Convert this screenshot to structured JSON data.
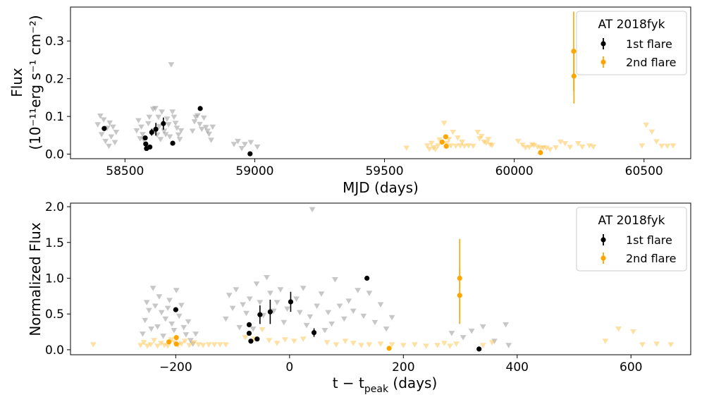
{
  "colors": {
    "black": "#000000",
    "orange": "#FFA500",
    "gray": "#999999",
    "light_orange": "#FFC658"
  },
  "chart_data": [
    {
      "type": "scatter",
      "xlabel": "MJD (days)",
      "ylabel_line1": "Flux",
      "ylabel_line2": "(10⁻¹¹erg s⁻¹ cm⁻²)",
      "xlim": [
        58290,
        60680
      ],
      "ylim": [
        -0.012,
        0.39
      ],
      "xticks": [
        58500,
        59000,
        59500,
        60000,
        60500
      ],
      "yticks": [
        0.0,
        0.1,
        0.2,
        0.3
      ],
      "ytick_labels": [
        "0.0",
        "0.1",
        "0.2",
        "0.3"
      ],
      "legend": {
        "title": "AT 2018fyk",
        "entries": [
          {
            "label": "1st flare",
            "color": "#000000"
          },
          {
            "label": "2nd flare",
            "color": "#FFA500"
          }
        ],
        "placement": "upper-right"
      },
      "series": [
        {
          "name": "1st flare",
          "color": "#000000",
          "points": [
            {
              "x": 58420,
              "y": 0.068,
              "err": 0.004
            },
            {
              "x": 58578,
              "y": 0.043,
              "err": 0.005
            },
            {
              "x": 58580,
              "y": 0.027,
              "err": 0.005
            },
            {
              "x": 58583,
              "y": 0.015,
              "err": 0.004
            },
            {
              "x": 58596,
              "y": 0.019,
              "err": 0.004
            },
            {
              "x": 58603,
              "y": 0.058,
              "err": 0.009
            },
            {
              "x": 58619,
              "y": 0.066,
              "err": 0.017
            },
            {
              "x": 58648,
              "y": 0.081,
              "err": 0.016
            },
            {
              "x": 58684,
              "y": 0.029,
              "err": 0.006
            },
            {
              "x": 58790,
              "y": 0.121,
              "err": 0.003
            },
            {
              "x": 58982,
              "y": 0.001,
              "err": 0.002
            }
          ]
        },
        {
          "name": "2nd flare",
          "color": "#FFA500",
          "points": [
            {
              "x": 59722,
              "y": 0.032,
              "err": 0.004
            },
            {
              "x": 59736,
              "y": 0.046,
              "err": 0.004
            },
            {
              "x": 59738,
              "y": 0.021,
              "err": 0.003
            },
            {
              "x": 60101,
              "y": 0.004,
              "err": 0.002
            },
            {
              "x": 60229,
              "y": 0.273,
              "err": 0.105
            },
            {
              "x": 60230,
              "y": 0.207,
              "err": 0.073
            }
          ]
        }
      ],
      "upper_limits_gray": [
        [
          58395,
          0.078
        ],
        [
          58405,
          0.101
        ],
        [
          58410,
          0.052
        ],
        [
          58418,
          0.091
        ],
        [
          58425,
          0.034
        ],
        [
          58432,
          0.069
        ],
        [
          58438,
          0.021
        ],
        [
          58441,
          0.083
        ],
        [
          58447,
          0.046
        ],
        [
          58454,
          0.072
        ],
        [
          58461,
          0.031
        ],
        [
          58466,
          0.058
        ],
        [
          58545,
          0.062
        ],
        [
          58552,
          0.089
        ],
        [
          58558,
          0.041
        ],
        [
          58563,
          0.072
        ],
        [
          58568,
          0.052
        ],
        [
          58572,
          0.038
        ],
        [
          58590,
          0.081
        ],
        [
          58594,
          0.098
        ],
        [
          58608,
          0.119
        ],
        [
          58611,
          0.061
        ],
        [
          58617,
          0.121
        ],
        [
          58624,
          0.051
        ],
        [
          58629,
          0.098
        ],
        [
          58631,
          0.073
        ],
        [
          58637,
          0.039
        ],
        [
          58642,
          0.112
        ],
        [
          58651,
          0.061
        ],
        [
          58657,
          0.052
        ],
        [
          58662,
          0.093
        ],
        [
          58668,
          0.078
        ],
        [
          58673,
          0.046
        ],
        [
          58678,
          0.237
        ],
        [
          58683,
          0.112
        ],
        [
          58689,
          0.098
        ],
        [
          58695,
          0.082
        ],
        [
          58700,
          0.069
        ],
        [
          58706,
          0.051
        ],
        [
          58711,
          0.039
        ],
        [
          58716,
          0.062
        ],
        [
          58760,
          0.061
        ],
        [
          58768,
          0.086
        ],
        [
          58773,
          0.098
        ],
        [
          58780,
          0.102
        ],
        [
          58788,
          0.079
        ],
        [
          58796,
          0.066
        ],
        [
          58804,
          0.096
        ],
        [
          58812,
          0.071
        ],
        [
          58818,
          0.061
        ],
        [
          58824,
          0.053
        ],
        [
          58832,
          0.037
        ],
        [
          58838,
          0.072
        ],
        [
          58920,
          0.026
        ],
        [
          58935,
          0.034
        ],
        [
          58950,
          0.015
        ],
        [
          58962,
          0.026
        ],
        [
          58985,
          0.031
        ],
        [
          59010,
          0.019
        ]
      ],
      "upper_limits_orange": [
        [
          59585,
          0.016
        ],
        [
          59665,
          0.022
        ],
        [
          59673,
          0.013
        ],
        [
          59681,
          0.029
        ],
        [
          59689,
          0.017
        ],
        [
          59696,
          0.012
        ],
        [
          59706,
          0.022
        ],
        [
          59712,
          0.038
        ],
        [
          59730,
          0.082
        ],
        [
          59740,
          0.029
        ],
        [
          59748,
          0.039
        ],
        [
          59756,
          0.022
        ],
        [
          59764,
          0.058
        ],
        [
          59775,
          0.021
        ],
        [
          59782,
          0.043
        ],
        [
          59792,
          0.022
        ],
        [
          59799,
          0.032
        ],
        [
          59808,
          0.021
        ],
        [
          59824,
          0.022
        ],
        [
          59842,
          0.021
        ],
        [
          59859,
          0.058
        ],
        [
          59866,
          0.041
        ],
        [
          59874,
          0.047
        ],
        [
          59884,
          0.032
        ],
        [
          59892,
          0.029
        ],
        [
          59900,
          0.039
        ],
        [
          59908,
          0.025
        ],
        [
          59914,
          0.023
        ],
        [
          60015,
          0.034
        ],
        [
          60032,
          0.024
        ],
        [
          60043,
          0.017
        ],
        [
          60058,
          0.018
        ],
        [
          60069,
          0.025
        ],
        [
          60076,
          0.023
        ],
        [
          60090,
          0.019
        ],
        [
          60102,
          0.015
        ],
        [
          60112,
          0.017
        ],
        [
          60124,
          0.016
        ],
        [
          60138,
          0.012
        ],
        [
          60160,
          0.017
        ],
        [
          60178,
          0.032
        ],
        [
          60196,
          0.028
        ],
        [
          60215,
          0.018
        ],
        [
          60246,
          0.028
        ],
        [
          60262,
          0.019
        ],
        [
          60290,
          0.022
        ],
        [
          60305,
          0.019
        ],
        [
          60492,
          0.022
        ],
        [
          60508,
          0.077
        ],
        [
          60530,
          0.059
        ],
        [
          60548,
          0.033
        ],
        [
          60568,
          0.021
        ],
        [
          60590,
          0.021
        ],
        [
          60612,
          0.022
        ]
      ]
    },
    {
      "type": "scatter",
      "xlabel": "t − t",
      "xlabel_sub": "peak",
      "xlabel_suffix": " (days)",
      "ylabel": "Normalized Flux",
      "xlim": [
        -385,
        705
      ],
      "ylim": [
        -0.07,
        2.05
      ],
      "xticks": [
        -200,
        0,
        200,
        400,
        600
      ],
      "xtick_labels": [
        "−200",
        "0",
        "200",
        "400",
        "600"
      ],
      "yticks": [
        0.0,
        0.5,
        1.0,
        1.5,
        2.0
      ],
      "ytick_labels": [
        "0.0",
        "0.5",
        "1.0",
        "1.5",
        "2.0"
      ],
      "legend": {
        "title": "AT 2018fyk",
        "entries": [
          {
            "label": "1st flare",
            "color": "#000000"
          },
          {
            "label": "2nd flare",
            "color": "#FFA500"
          }
        ],
        "placement": "upper-right"
      },
      "series": [
        {
          "name": "1st flare",
          "color": "#000000",
          "points": [
            {
              "x": -200,
              "y": 0.56,
              "err": 0.02
            },
            {
              "x": -71,
              "y": 0.35,
              "err": 0.03
            },
            {
              "x": -71,
              "y": 0.23,
              "err": 0.03
            },
            {
              "x": -68,
              "y": 0.12,
              "err": 0.03
            },
            {
              "x": -57,
              "y": 0.15,
              "err": 0.03
            },
            {
              "x": -52,
              "y": 0.49,
              "err": 0.13
            },
            {
              "x": -34,
              "y": 0.53,
              "err": 0.17
            },
            {
              "x": 2,
              "y": 0.67,
              "err": 0.14
            },
            {
              "x": 43,
              "y": 0.24,
              "err": 0.06
            },
            {
              "x": 136,
              "y": 1.0,
              "err": 0.02
            },
            {
              "x": 333,
              "y": 0.01,
              "err": 0.01
            }
          ]
        },
        {
          "name": "2nd flare",
          "color": "#FFA500",
          "points": [
            {
              "x": -212,
              "y": 0.11,
              "err": 0.02
            },
            {
              "x": -199,
              "y": 0.17,
              "err": 0.02
            },
            {
              "x": -199,
              "y": 0.08,
              "err": 0.02
            },
            {
              "x": 175,
              "y": 0.02,
              "err": 0.01
            },
            {
              "x": 299,
              "y": 1.0,
              "err": 0.55
            },
            {
              "x": 299,
              "y": 0.76,
              "err": 0.4
            }
          ]
        }
      ],
      "upper_limits_gray": [
        [
          -258,
          0.22
        ],
        [
          -254,
          0.41
        ],
        [
          -251,
          0.66
        ],
        [
          -247,
          0.55
        ],
        [
          -243,
          0.29
        ],
        [
          -240,
          0.86
        ],
        [
          -236,
          0.61
        ],
        [
          -232,
          0.32
        ],
        [
          -229,
          0.74
        ],
        [
          -225,
          0.52
        ],
        [
          -222,
          0.19
        ],
        [
          -218,
          0.43
        ],
        [
          -214,
          0.58
        ],
        [
          -211,
          0.69
        ],
        [
          -207,
          0.36
        ],
        [
          -203,
          0.27
        ],
        [
          -199,
          0.83
        ],
        [
          -194,
          0.47
        ],
        [
          -190,
          0.62
        ],
        [
          -186,
          0.31
        ],
        [
          -182,
          0.21
        ],
        [
          -178,
          0.39
        ],
        [
          -174,
          0.13
        ],
        [
          -170,
          0.08
        ],
        [
          -165,
          0.22
        ],
        [
          -112,
          0.43
        ],
        [
          -106,
          0.76
        ],
        [
          -100,
          0.58
        ],
        [
          -94,
          0.84
        ],
        [
          -88,
          0.31
        ],
        [
          -82,
          0.63
        ],
        [
          -76,
          0.51
        ],
        [
          -70,
          0.71
        ],
        [
          -64,
          0.29
        ],
        [
          -58,
          0.92
        ],
        [
          -52,
          0.66
        ],
        [
          -46,
          0.48
        ],
        [
          -40,
          1.01
        ],
        [
          -34,
          0.79
        ],
        [
          -28,
          0.54
        ],
        [
          -22,
          0.66
        ],
        [
          -16,
          0.84
        ],
        [
          -10,
          0.38
        ],
        [
          -4,
          0.57
        ],
        [
          12,
          0.71
        ],
        [
          18,
          0.52
        ],
        [
          24,
          0.86
        ],
        [
          30,
          0.34
        ],
        [
          36,
          0.46
        ],
        [
          40,
          1.96
        ],
        [
          48,
          0.61
        ],
        [
          56,
          0.78
        ],
        [
          62,
          0.27
        ],
        [
          68,
          0.52
        ],
        [
          74,
          0.36
        ],
        [
          80,
          0.98
        ],
        [
          88,
          0.61
        ],
        [
          96,
          0.43
        ],
        [
          104,
          0.68
        ],
        [
          112,
          0.54
        ],
        [
          120,
          0.83
        ],
        [
          130,
          0.47
        ],
        [
          140,
          0.79
        ],
        [
          150,
          0.38
        ],
        [
          160,
          0.63
        ],
        [
          170,
          0.29
        ],
        [
          180,
          0.45
        ],
        [
          285,
          0.23
        ],
        [
          305,
          0.17
        ],
        [
          320,
          0.26
        ],
        [
          340,
          0.32
        ],
        [
          360,
          0.12
        ],
        [
          380,
          0.35
        ],
        [
          385,
          0.06
        ]
      ],
      "upper_limits_orange": [
        [
          -345,
          0.07
        ],
        [
          -262,
          0.06
        ],
        [
          -256,
          0.1
        ],
        [
          -250,
          0.05
        ],
        [
          -244,
          0.07
        ],
        [
          -238,
          0.13
        ],
        [
          -232,
          0.05
        ],
        [
          -226,
          0.09
        ],
        [
          -220,
          0.06
        ],
        [
          -214,
          0.05
        ],
        [
          -208,
          0.14
        ],
        [
          -202,
          0.1
        ],
        [
          -196,
          0.06
        ],
        [
          -190,
          0.08
        ],
        [
          -184,
          0.12
        ],
        [
          -176,
          0.06
        ],
        [
          -168,
          0.1
        ],
        [
          -160,
          0.07
        ],
        [
          -152,
          0.06
        ],
        [
          -142,
          0.07
        ],
        [
          -132,
          0.07
        ],
        [
          -122,
          0.07
        ],
        [
          -112,
          0.07
        ],
        [
          -78,
          0.17
        ],
        [
          -62,
          0.15
        ],
        [
          -48,
          0.28
        ],
        [
          -36,
          0.13
        ],
        [
          -22,
          0.09
        ],
        [
          -8,
          0.14
        ],
        [
          8,
          0.12
        ],
        [
          24,
          0.15
        ],
        [
          66,
          0.1
        ],
        [
          82,
          0.07
        ],
        [
          98,
          0.12
        ],
        [
          112,
          0.09
        ],
        [
          126,
          0.06
        ],
        [
          140,
          0.07
        ],
        [
          160,
          0.08
        ],
        [
          180,
          0.07
        ],
        [
          200,
          0.06
        ],
        [
          220,
          0.07
        ],
        [
          240,
          0.05
        ],
        [
          260,
          0.06
        ],
        [
          272,
          0.09
        ],
        [
          282,
          0.05
        ],
        [
          293,
          0.08
        ],
        [
          340,
          0.06
        ],
        [
          356,
          0.1
        ],
        [
          555,
          0.12
        ],
        [
          578,
          0.29
        ],
        [
          604,
          0.25
        ],
        [
          620,
          0.07
        ],
        [
          645,
          0.08
        ],
        [
          670,
          0.07
        ]
      ]
    }
  ]
}
